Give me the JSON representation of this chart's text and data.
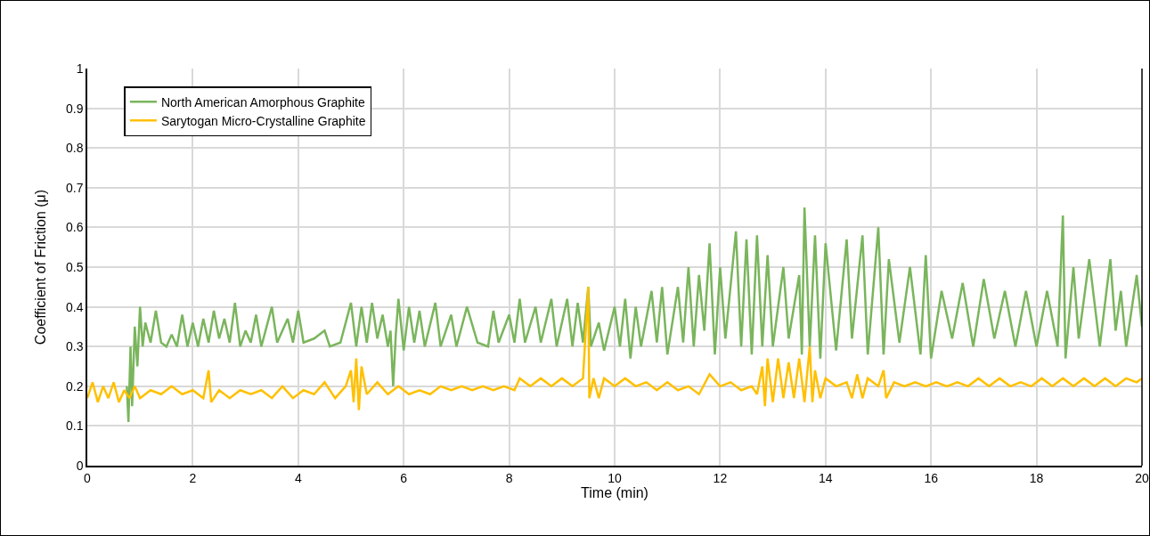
{
  "chart_data": {
    "type": "line",
    "xlabel": "Time (min)",
    "ylabel": "Coefficient of Friction (μ)",
    "xlim": [
      0,
      20
    ],
    "xticks": [
      0,
      2,
      4,
      6,
      8,
      10,
      12,
      14,
      16,
      18,
      20
    ],
    "ylim": [
      0,
      1
    ],
    "yticks": [
      0,
      0.1,
      0.2,
      0.3,
      0.4,
      0.5,
      0.6,
      0.7,
      0.8,
      0.9,
      1
    ],
    "grid": true,
    "legend": "top left",
    "line_style": "solid",
    "series": [
      {
        "name": "North American Amorphous Graphite",
        "color": "#7ab55c",
        "x": [
          0.75,
          0.78,
          0.82,
          0.85,
          0.9,
          0.95,
          1.0,
          1.05,
          1.1,
          1.2,
          1.3,
          1.4,
          1.5,
          1.6,
          1.7,
          1.8,
          1.9,
          2.0,
          2.1,
          2.2,
          2.3,
          2.4,
          2.5,
          2.6,
          2.7,
          2.8,
          2.9,
          3.0,
          3.1,
          3.2,
          3.3,
          3.5,
          3.6,
          3.8,
          3.9,
          4.0,
          4.1,
          4.3,
          4.5,
          4.6,
          4.8,
          5.0,
          5.1,
          5.2,
          5.3,
          5.4,
          5.5,
          5.6,
          5.7,
          5.75,
          5.8,
          5.85,
          5.9,
          6.0,
          6.1,
          6.2,
          6.3,
          6.4,
          6.6,
          6.7,
          6.9,
          7.0,
          7.2,
          7.4,
          7.6,
          7.7,
          7.8,
          8.0,
          8.1,
          8.2,
          8.3,
          8.5,
          8.6,
          8.8,
          8.9,
          9.1,
          9.2,
          9.3,
          9.4,
          9.5,
          9.55,
          9.7,
          9.8,
          10.0,
          10.1,
          10.2,
          10.3,
          10.4,
          10.5,
          10.7,
          10.8,
          10.9,
          11.0,
          11.2,
          11.3,
          11.4,
          11.5,
          11.6,
          11.7,
          11.8,
          11.9,
          12.0,
          12.1,
          12.3,
          12.4,
          12.5,
          12.6,
          12.7,
          12.8,
          12.9,
          13.0,
          13.2,
          13.3,
          13.5,
          13.55,
          13.6,
          13.7,
          13.8,
          13.9,
          14.0,
          14.2,
          14.4,
          14.5,
          14.7,
          14.8,
          15.0,
          15.1,
          15.2,
          15.4,
          15.6,
          15.8,
          15.9,
          16.0,
          16.2,
          16.4,
          16.6,
          16.8,
          17.0,
          17.2,
          17.4,
          17.6,
          17.8,
          18.0,
          18.2,
          18.4,
          18.5,
          18.55,
          18.7,
          18.8,
          19.0,
          19.2,
          19.4,
          19.5,
          19.6,
          19.7,
          19.9,
          20.0
        ],
        "values": [
          0.2,
          0.11,
          0.3,
          0.15,
          0.35,
          0.25,
          0.4,
          0.3,
          0.36,
          0.31,
          0.39,
          0.31,
          0.3,
          0.33,
          0.3,
          0.38,
          0.3,
          0.36,
          0.3,
          0.37,
          0.31,
          0.39,
          0.32,
          0.37,
          0.31,
          0.41,
          0.3,
          0.34,
          0.31,
          0.38,
          0.3,
          0.4,
          0.31,
          0.37,
          0.31,
          0.39,
          0.31,
          0.32,
          0.34,
          0.3,
          0.31,
          0.41,
          0.3,
          0.4,
          0.31,
          0.41,
          0.32,
          0.38,
          0.3,
          0.34,
          0.2,
          0.33,
          0.42,
          0.29,
          0.4,
          0.31,
          0.39,
          0.3,
          0.41,
          0.3,
          0.38,
          0.3,
          0.4,
          0.31,
          0.3,
          0.39,
          0.31,
          0.38,
          0.31,
          0.42,
          0.31,
          0.4,
          0.31,
          0.42,
          0.3,
          0.42,
          0.3,
          0.41,
          0.31,
          0.45,
          0.3,
          0.36,
          0.29,
          0.4,
          0.3,
          0.42,
          0.27,
          0.4,
          0.3,
          0.44,
          0.31,
          0.45,
          0.28,
          0.45,
          0.31,
          0.5,
          0.3,
          0.48,
          0.34,
          0.56,
          0.28,
          0.5,
          0.32,
          0.59,
          0.3,
          0.57,
          0.28,
          0.58,
          0.3,
          0.53,
          0.3,
          0.5,
          0.32,
          0.48,
          0.28,
          0.65,
          0.3,
          0.58,
          0.27,
          0.56,
          0.29,
          0.57,
          0.32,
          0.58,
          0.28,
          0.6,
          0.28,
          0.52,
          0.31,
          0.5,
          0.28,
          0.53,
          0.27,
          0.44,
          0.32,
          0.46,
          0.3,
          0.47,
          0.32,
          0.44,
          0.3,
          0.44,
          0.3,
          0.44,
          0.3,
          0.63,
          0.27,
          0.5,
          0.32,
          0.52,
          0.3,
          0.52,
          0.34,
          0.44,
          0.3,
          0.48,
          0.35
        ]
      },
      {
        "name": "Sarytogan Micro-Crystalline Graphite",
        "color": "#ffc000",
        "x": [
          0,
          0.1,
          0.2,
          0.3,
          0.4,
          0.5,
          0.6,
          0.7,
          0.8,
          0.9,
          1.0,
          1.2,
          1.4,
          1.6,
          1.8,
          2.0,
          2.2,
          2.3,
          2.35,
          2.5,
          2.7,
          2.9,
          3.1,
          3.3,
          3.5,
          3.7,
          3.9,
          4.1,
          4.3,
          4.5,
          4.7,
          4.9,
          5.0,
          5.05,
          5.1,
          5.15,
          5.2,
          5.3,
          5.5,
          5.7,
          5.9,
          6.1,
          6.3,
          6.5,
          6.7,
          6.9,
          7.1,
          7.3,
          7.5,
          7.7,
          7.9,
          8.1,
          8.2,
          8.4,
          8.6,
          8.8,
          9.0,
          9.2,
          9.4,
          9.5,
          9.52,
          9.6,
          9.7,
          9.8,
          10.0,
          10.2,
          10.4,
          10.6,
          10.8,
          11.0,
          11.2,
          11.4,
          11.6,
          11.8,
          12.0,
          12.2,
          12.4,
          12.6,
          12.7,
          12.8,
          12.85,
          12.9,
          13.0,
          13.1,
          13.2,
          13.3,
          13.4,
          13.5,
          13.6,
          13.7,
          13.75,
          13.8,
          13.9,
          14.0,
          14.2,
          14.4,
          14.5,
          14.6,
          14.7,
          14.8,
          15.0,
          15.1,
          15.15,
          15.3,
          15.5,
          15.7,
          15.9,
          16.1,
          16.3,
          16.5,
          16.7,
          16.9,
          17.1,
          17.3,
          17.5,
          17.7,
          17.9,
          18.1,
          18.3,
          18.5,
          18.7,
          18.9,
          19.1,
          19.3,
          19.5,
          19.7,
          19.9,
          20.0
        ],
        "values": [
          0.17,
          0.21,
          0.16,
          0.2,
          0.17,
          0.21,
          0.16,
          0.19,
          0.17,
          0.2,
          0.17,
          0.19,
          0.18,
          0.2,
          0.18,
          0.19,
          0.17,
          0.24,
          0.16,
          0.19,
          0.17,
          0.19,
          0.18,
          0.19,
          0.17,
          0.2,
          0.17,
          0.19,
          0.18,
          0.21,
          0.17,
          0.2,
          0.24,
          0.16,
          0.27,
          0.14,
          0.25,
          0.18,
          0.21,
          0.18,
          0.2,
          0.18,
          0.19,
          0.18,
          0.2,
          0.19,
          0.2,
          0.19,
          0.2,
          0.19,
          0.2,
          0.19,
          0.22,
          0.2,
          0.22,
          0.2,
          0.22,
          0.2,
          0.22,
          0.45,
          0.17,
          0.22,
          0.17,
          0.22,
          0.2,
          0.22,
          0.2,
          0.21,
          0.19,
          0.21,
          0.19,
          0.2,
          0.18,
          0.23,
          0.2,
          0.21,
          0.19,
          0.2,
          0.18,
          0.25,
          0.15,
          0.27,
          0.16,
          0.27,
          0.17,
          0.26,
          0.17,
          0.27,
          0.16,
          0.3,
          0.16,
          0.24,
          0.17,
          0.22,
          0.2,
          0.21,
          0.17,
          0.23,
          0.17,
          0.22,
          0.2,
          0.24,
          0.17,
          0.21,
          0.2,
          0.21,
          0.2,
          0.21,
          0.2,
          0.21,
          0.2,
          0.22,
          0.2,
          0.22,
          0.2,
          0.21,
          0.2,
          0.22,
          0.2,
          0.22,
          0.2,
          0.22,
          0.2,
          0.22,
          0.2,
          0.22,
          0.21,
          0.22
        ]
      }
    ]
  }
}
